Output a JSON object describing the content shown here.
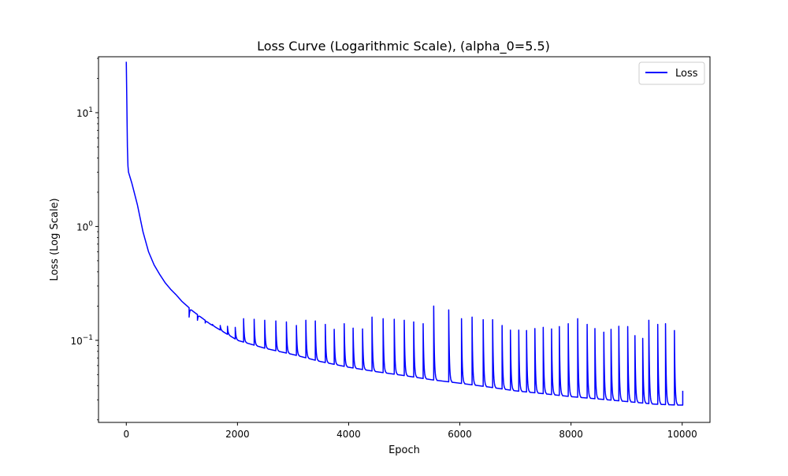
{
  "chart_data": {
    "type": "line",
    "title": "Loss Curve (Logarithmic Scale), (alpha_0=5.5)",
    "xlabel": "Epoch",
    "ylabel": "Loss (Log Scale)",
    "xlim": [
      -500,
      10500
    ],
    "ylim": [
      0.019,
      31
    ],
    "yscale": "log",
    "grid": false,
    "legend_position": "top-right",
    "x_ticks": [
      {
        "value": 0,
        "label": "0"
      },
      {
        "value": 2000,
        "label": "2000"
      },
      {
        "value": 4000,
        "label": "4000"
      },
      {
        "value": 6000,
        "label": "6000"
      },
      {
        "value": 8000,
        "label": "8000"
      },
      {
        "value": 10000,
        "label": "10000"
      }
    ],
    "y_ticks": [
      {
        "value": 0.1,
        "base": "10",
        "exp": "−1"
      },
      {
        "value": 1,
        "base": "10",
        "exp": "0"
      },
      {
        "value": 10,
        "base": "10",
        "exp": "1"
      }
    ],
    "series": [
      {
        "name": "Loss",
        "color": "#0000ff",
        "points": [
          [
            0,
            28
          ],
          [
            10,
            12
          ],
          [
            20,
            5
          ],
          [
            30,
            3.4
          ],
          [
            40,
            3.0
          ],
          [
            100,
            2.4
          ],
          [
            200,
            1.55
          ],
          [
            300,
            0.9
          ],
          [
            400,
            0.6
          ],
          [
            500,
            0.46
          ],
          [
            600,
            0.38
          ],
          [
            700,
            0.32
          ],
          [
            800,
            0.28
          ],
          [
            900,
            0.25
          ],
          [
            1000,
            0.22
          ],
          [
            1200,
            0.18
          ],
          [
            1500,
            0.14
          ],
          [
            2000,
            0.1
          ],
          [
            2500,
            0.085
          ],
          [
            3000,
            0.075
          ],
          [
            3500,
            0.065
          ],
          [
            4000,
            0.058
          ],
          [
            4500,
            0.053
          ],
          [
            5000,
            0.049
          ],
          [
            5500,
            0.045
          ],
          [
            6000,
            0.042
          ],
          [
            6500,
            0.039
          ],
          [
            7000,
            0.036
          ],
          [
            7500,
            0.034
          ],
          [
            8000,
            0.032
          ],
          [
            8500,
            0.0305
          ],
          [
            9000,
            0.029
          ],
          [
            9500,
            0.0275
          ],
          [
            9900,
            0.027
          ],
          [
            10000,
            0.027
          ]
        ],
        "spikes": [
          [
            1130,
            0.16
          ],
          [
            1280,
            0.15
          ],
          [
            1420,
            0.142
          ],
          [
            1550,
            0.138
          ],
          [
            1690,
            0.135
          ],
          [
            1820,
            0.133
          ],
          [
            1960,
            0.13
          ],
          [
            2110,
            0.155
          ],
          [
            2300,
            0.153
          ],
          [
            2490,
            0.15
          ],
          [
            2690,
            0.148
          ],
          [
            2880,
            0.145
          ],
          [
            3060,
            0.135
          ],
          [
            3230,
            0.15
          ],
          [
            3400,
            0.148
          ],
          [
            3580,
            0.138
          ],
          [
            3740,
            0.125
          ],
          [
            3920,
            0.14
          ],
          [
            4080,
            0.128
          ],
          [
            4250,
            0.126
          ],
          [
            4420,
            0.16
          ],
          [
            4620,
            0.155
          ],
          [
            4820,
            0.153
          ],
          [
            5000,
            0.15
          ],
          [
            5170,
            0.145
          ],
          [
            5340,
            0.14
          ],
          [
            5530,
            0.2
          ],
          [
            5800,
            0.185
          ],
          [
            6030,
            0.155
          ],
          [
            6220,
            0.16
          ],
          [
            6420,
            0.152
          ],
          [
            6590,
            0.152
          ],
          [
            6760,
            0.135
          ],
          [
            6910,
            0.123
          ],
          [
            7060,
            0.123
          ],
          [
            7200,
            0.122
          ],
          [
            7350,
            0.127
          ],
          [
            7500,
            0.13
          ],
          [
            7650,
            0.126
          ],
          [
            7790,
            0.132
          ],
          [
            7950,
            0.14
          ],
          [
            8120,
            0.155
          ],
          [
            8290,
            0.138
          ],
          [
            8430,
            0.127
          ],
          [
            8590,
            0.118
          ],
          [
            8720,
            0.125
          ],
          [
            8860,
            0.133
          ],
          [
            9020,
            0.132
          ],
          [
            9150,
            0.11
          ],
          [
            9290,
            0.104
          ],
          [
            9400,
            0.15
          ],
          [
            9560,
            0.138
          ],
          [
            9700,
            0.14
          ],
          [
            9860,
            0.122
          ],
          [
            10010,
            0.036
          ]
        ]
      }
    ]
  }
}
